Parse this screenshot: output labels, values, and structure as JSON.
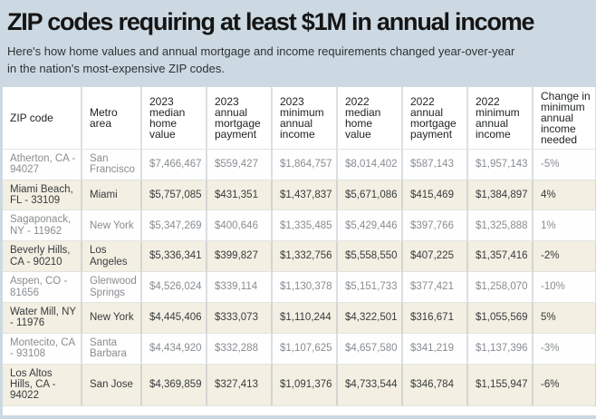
{
  "page": {
    "title": "ZIP codes requiring at least $1M in annual income",
    "subtitle": "Here's how home values and annual mortgage and income requirements changed year-over-year in the nation's most-expensive ZIP codes."
  },
  "colors": {
    "page_background": "#ccd9e2",
    "row_white_background": "#fefefe",
    "row_cream_background": "#f3efe2",
    "row_white_text": "#898d91",
    "row_cream_text": "#383b3f",
    "title_text": "#151515"
  },
  "chart_data": {
    "type": "table",
    "title": "ZIP codes requiring at least $1M in annual income",
    "columns": [
      "ZIP code",
      "Metro area",
      "2023 median home value",
      "2023 annual mortgage payment",
      "2023 minimum annual income",
      "2022 median home value",
      "2022 annual mortgage payment",
      "2022 minimum annual income",
      "Change in minimum annual income needed"
    ],
    "rows": [
      [
        "Atherton, CA - 94027",
        "San Francisco",
        "$7,466,467",
        "$559,427",
        "$1,864,757",
        "$8,014,402",
        "$587,143",
        "$1,957,143",
        "-5%"
      ],
      [
        "Miami Beach, FL - 33109",
        "Miami",
        "$5,757,085",
        "$431,351",
        "$1,437,837",
        "$5,671,086",
        "$415,469",
        "$1,384,897",
        "4%"
      ],
      [
        "Sagaponack, NY - 11962",
        "New York",
        "$5,347,269",
        "$400,646",
        "$1,335,485",
        "$5,429,446",
        "$397,766",
        "$1,325,888",
        "1%"
      ],
      [
        "Beverly Hills, CA - 90210",
        "Los Angeles",
        "$5,336,341",
        "$399,827",
        "$1,332,756",
        "$5,558,550",
        "$407,225",
        "$1,357,416",
        "-2%"
      ],
      [
        "Aspen, CO - 81656",
        "Glenwood Springs",
        "$4,526,024",
        "$339,114",
        "$1,130,378",
        "$5,151,733",
        "$377,421",
        "$1,258,070",
        "-10%"
      ],
      [
        "Water Mill, NY - 11976",
        "New York",
        "$4,445,406",
        "$333,073",
        "$1,110,244",
        "$4,322,501",
        "$316,671",
        "$1,055,569",
        "5%"
      ],
      [
        "Montecito, CA - 93108",
        "Santa Barbara",
        "$4,434,920",
        "$332,288",
        "$1,107,625",
        "$4,657,580",
        "$341,219",
        "$1,137,396",
        "-3%"
      ],
      [
        "Los Altos Hills, CA - 94022",
        "San Jose",
        "$4,369,859",
        "$327,413",
        "$1,091,376",
        "$4,733,544",
        "$346,784",
        "$1,155,947",
        "-6%"
      ]
    ]
  }
}
